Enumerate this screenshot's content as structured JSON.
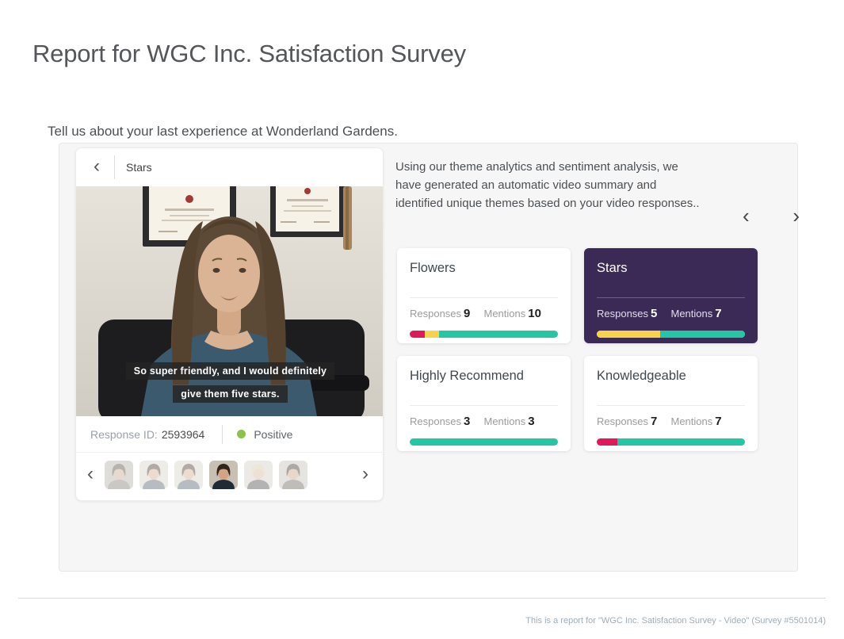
{
  "page": {
    "title": "Report for WGC Inc. Satisfaction Survey",
    "question": "Tell us about your last experience at Wonderland Gardens.",
    "footer": "This is a report for \"WGC Inc. Satisfaction Survey - Video\" (Survey #5501014)"
  },
  "icons": {
    "back": "‹",
    "prev": "‹",
    "next": "›"
  },
  "player": {
    "theme_label": "Stars",
    "captions": [
      "So super friendly, and I would definitely",
      "give them five stars."
    ],
    "response_id_label": "Response ID:",
    "response_id": "2593964",
    "sentiment": {
      "label": "Positive",
      "color": "#8bc34a"
    },
    "thumbnails": [
      {
        "name": "respondent-1",
        "active": false,
        "bg": "#b3afa8",
        "hair": "#55493e",
        "skin": "#c8a78c",
        "top": "#837d74"
      },
      {
        "name": "respondent-2",
        "active": false,
        "bg": "#d9d3c8",
        "hair": "#4a3a2c",
        "skin": "#d4ae8e",
        "top": "#52616d"
      },
      {
        "name": "respondent-3",
        "active": false,
        "bg": "#d9d3c8",
        "hair": "#4a3a2c",
        "skin": "#d4ae8e",
        "top": "#52616d"
      },
      {
        "name": "respondent-4",
        "active": true,
        "bg": "#c7c0b3",
        "hair": "#33241a",
        "skin": "#d2a384",
        "top": "#1f2b35"
      },
      {
        "name": "respondent-5",
        "active": false,
        "bg": "#d3cec6",
        "hair": "#d9c8a4",
        "skin": "#d9b79a",
        "top": "#4c4c4c"
      },
      {
        "name": "respondent-6",
        "active": false,
        "bg": "#c6c1ba",
        "hair": "#3d322a",
        "skin": "#caa383",
        "top": "#6b635b"
      }
    ]
  },
  "summary": {
    "text": "Using our theme analytics and sentiment analysis, we have generated an automatic video summary and identified unique themes based on your video responses.."
  },
  "themes": {
    "responses_label": "Responses",
    "mentions_label": "Mentions",
    "colors": {
      "pink": "#de1b59",
      "yellow": "#f8d24b",
      "teal": "#25c6a4",
      "selected_bg": "#3b2a55"
    },
    "cards": [
      {
        "title": "Flowers",
        "responses": 9,
        "mentions": 10,
        "selected": false,
        "bar": [
          {
            "color": "#de1b59",
            "pct": 10
          },
          {
            "color": "#f8d24b",
            "pct": 10
          },
          {
            "color": "#25c6a4",
            "pct": 80
          }
        ]
      },
      {
        "title": "Stars",
        "responses": 5,
        "mentions": 7,
        "selected": true,
        "bar": [
          {
            "color": "#f8d24b",
            "pct": 43
          },
          {
            "color": "#25c6a4",
            "pct": 57
          }
        ]
      },
      {
        "title": "Highly Recommend",
        "responses": 3,
        "mentions": 3,
        "selected": false,
        "bar": [
          {
            "color": "#25c6a4",
            "pct": 100
          }
        ]
      },
      {
        "title": "Knowledgeable",
        "responses": 7,
        "mentions": 7,
        "selected": false,
        "bar": [
          {
            "color": "#de1b59",
            "pct": 14
          },
          {
            "color": "#25c6a4",
            "pct": 86
          }
        ]
      }
    ]
  }
}
